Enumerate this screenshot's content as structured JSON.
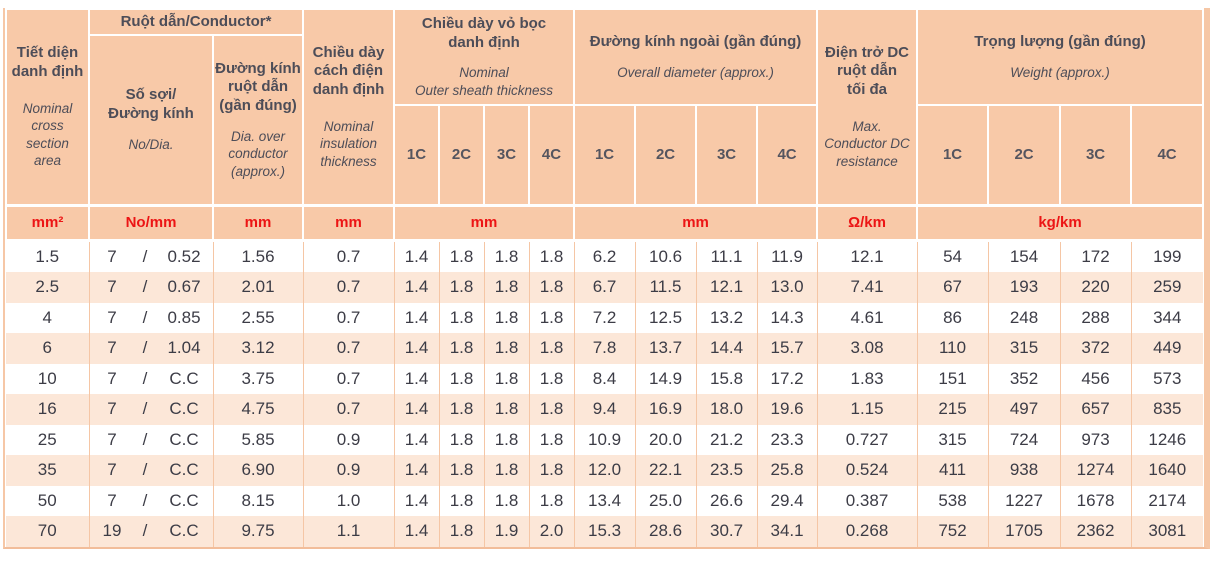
{
  "table": {
    "header": {
      "area": {
        "vi": "Tiết diện\ndanh định",
        "en": "Nominal\ncross\nsection\narea"
      },
      "conductor_group": "Ruột dẫn/Conductor*",
      "strands": {
        "vi": "Số sợi/\nĐường kính",
        "en": "No/Dia."
      },
      "dia": {
        "vi": "Đường kính\nruột dẫn\n(gần đúng)",
        "en": "Dia. over\nconductor\n(approx.)"
      },
      "insulation": {
        "vi": "Chiều dày\ncách điện\ndanh định",
        "en": "Nominal\ninsulation\nthickness"
      },
      "sheath": {
        "vi": "Chiều dày vỏ bọc\ndanh định",
        "en": "Nominal\nOuter sheath thickness"
      },
      "od": {
        "vi": "Đường kính ngoài (gần đúng)",
        "en": "Overall diameter (approx.)"
      },
      "resistance": {
        "vi": "Điện trở DC\nruột dẫn\ntối đa",
        "en": "Max.\nConductor DC\nresistance"
      },
      "weight": {
        "vi": "Trọng lượng (gần đúng)",
        "en": "Weight (approx.)"
      },
      "subcols": [
        "1C",
        "2C",
        "3C",
        "4C"
      ]
    },
    "units": {
      "area": "mm²",
      "strands": "No/mm",
      "dia": "mm",
      "insulation": "mm",
      "sheath": "mm",
      "od": "mm",
      "resistance": "Ω/km",
      "weight": "kg/km"
    },
    "strands_separator": "/",
    "rows": [
      {
        "area": "1.5",
        "strands": {
          "no": "7",
          "dia": "0.52"
        },
        "dia": "1.56",
        "ins": "0.7",
        "sheath": [
          "1.4",
          "1.8",
          "1.8",
          "1.8"
        ],
        "od": [
          "6.2",
          "10.6",
          "11.1",
          "11.9"
        ],
        "res": "12.1",
        "weight": [
          "54",
          "154",
          "172",
          "199"
        ]
      },
      {
        "area": "2.5",
        "strands": {
          "no": "7",
          "dia": "0.67"
        },
        "dia": "2.01",
        "ins": "0.7",
        "sheath": [
          "1.4",
          "1.8",
          "1.8",
          "1.8"
        ],
        "od": [
          "6.7",
          "11.5",
          "12.1",
          "13.0"
        ],
        "res": "7.41",
        "weight": [
          "67",
          "193",
          "220",
          "259"
        ]
      },
      {
        "area": "4",
        "strands": {
          "no": "7",
          "dia": "0.85"
        },
        "dia": "2.55",
        "ins": "0.7",
        "sheath": [
          "1.4",
          "1.8",
          "1.8",
          "1.8"
        ],
        "od": [
          "7.2",
          "12.5",
          "13.2",
          "14.3"
        ],
        "res": "4.61",
        "weight": [
          "86",
          "248",
          "288",
          "344"
        ]
      },
      {
        "area": "6",
        "strands": {
          "no": "7",
          "dia": "1.04"
        },
        "dia": "3.12",
        "ins": "0.7",
        "sheath": [
          "1.4",
          "1.8",
          "1.8",
          "1.8"
        ],
        "od": [
          "7.8",
          "13.7",
          "14.4",
          "15.7"
        ],
        "res": "3.08",
        "weight": [
          "110",
          "315",
          "372",
          "449"
        ]
      },
      {
        "area": "10",
        "strands": {
          "no": "7",
          "dia": "C.C"
        },
        "dia": "3.75",
        "ins": "0.7",
        "sheath": [
          "1.4",
          "1.8",
          "1.8",
          "1.8"
        ],
        "od": [
          "8.4",
          "14.9",
          "15.8",
          "17.2"
        ],
        "res": "1.83",
        "weight": [
          "151",
          "352",
          "456",
          "573"
        ]
      },
      {
        "area": "16",
        "strands": {
          "no": "7",
          "dia": "C.C"
        },
        "dia": "4.75",
        "ins": "0.7",
        "sheath": [
          "1.4",
          "1.8",
          "1.8",
          "1.8"
        ],
        "od": [
          "9.4",
          "16.9",
          "18.0",
          "19.6"
        ],
        "res": "1.15",
        "weight": [
          "215",
          "497",
          "657",
          "835"
        ]
      },
      {
        "area": "25",
        "strands": {
          "no": "7",
          "dia": "C.C"
        },
        "dia": "5.85",
        "ins": "0.9",
        "sheath": [
          "1.4",
          "1.8",
          "1.8",
          "1.8"
        ],
        "od": [
          "10.9",
          "20.0",
          "21.2",
          "23.3"
        ],
        "res": "0.727",
        "weight": [
          "315",
          "724",
          "973",
          "1246"
        ]
      },
      {
        "area": "35",
        "strands": {
          "no": "7",
          "dia": "C.C"
        },
        "dia": "6.90",
        "ins": "0.9",
        "sheath": [
          "1.4",
          "1.8",
          "1.8",
          "1.8"
        ],
        "od": [
          "12.0",
          "22.1",
          "23.5",
          "25.8"
        ],
        "res": "0.524",
        "weight": [
          "411",
          "938",
          "1274",
          "1640"
        ]
      },
      {
        "area": "50",
        "strands": {
          "no": "7",
          "dia": "C.C"
        },
        "dia": "8.15",
        "ins": "1.0",
        "sheath": [
          "1.4",
          "1.8",
          "1.8",
          "1.8"
        ],
        "od": [
          "13.4",
          "25.0",
          "26.6",
          "29.4"
        ],
        "res": "0.387",
        "weight": [
          "538",
          "1227",
          "1678",
          "2174"
        ]
      },
      {
        "area": "70",
        "strands": {
          "no": "19",
          "dia": "C.C"
        },
        "dia": "9.75",
        "ins": "1.1",
        "sheath": [
          "1.4",
          "1.8",
          "1.9",
          "2.0"
        ],
        "od": [
          "15.3",
          "28.6",
          "30.7",
          "34.1"
        ],
        "res": "0.268",
        "weight": [
          "752",
          "1705",
          "2362",
          "3081"
        ]
      }
    ]
  }
}
